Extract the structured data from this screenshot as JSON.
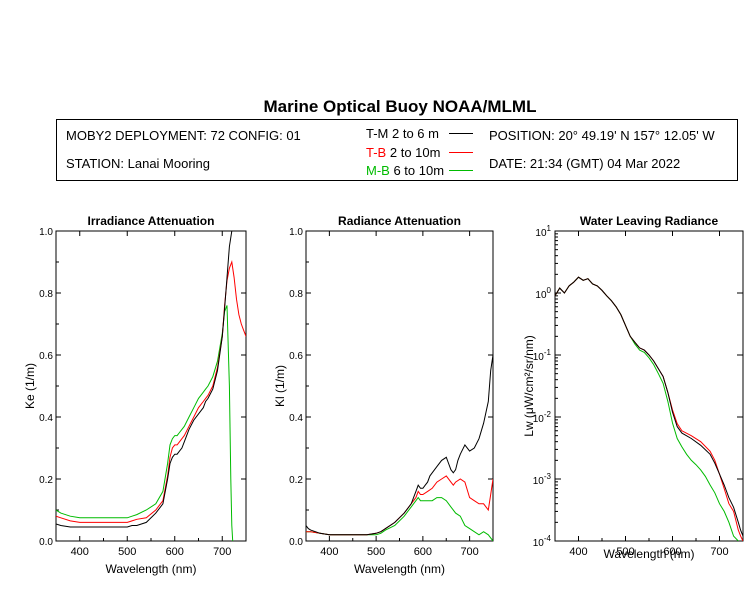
{
  "title": "Marine Optical Buoy NOAA/MLML",
  "info": {
    "deployment": "MOBY2 DEPLOYMENT: 72 CONFIG: 01",
    "station": "STATION: Lanai Mooring",
    "position": "POSITION: 20° 49.19' N   157° 12.05' W",
    "date": "DATE: 21:34 (GMT) 04 Mar 2022"
  },
  "legend": [
    {
      "code": "T-M",
      "range": "2 to 6  m",
      "color": "#000000"
    },
    {
      "code": "T-B",
      "range": "2 to 10m",
      "color": "#ff0000"
    },
    {
      "code": "M-B",
      "range": "6 to 10m",
      "color": "#00bb00"
    }
  ],
  "chart_data": [
    {
      "type": "line",
      "title": "Irradiance Attenuation",
      "xlabel": "Wavelength (nm)",
      "ylabel": "Ke  (1/m)",
      "xlim": [
        350,
        750
      ],
      "ylim": [
        0,
        1.0
      ],
      "x_ticks": [
        400,
        500,
        600,
        700
      ],
      "y_ticks": [
        "0.0",
        "0.2",
        "0.4",
        "0.6",
        "0.8",
        "1.0"
      ],
      "series": [
        {
          "name": "T-M",
          "color": "#000000",
          "x": [
            350,
            360,
            380,
            400,
            420,
            440,
            460,
            480,
            500,
            510,
            520,
            540,
            560,
            575,
            585,
            590,
            595,
            600,
            605,
            610,
            615,
            620,
            630,
            640,
            650,
            655,
            660,
            665,
            670,
            680,
            690,
            700,
            705,
            710,
            715,
            720
          ],
          "y": [
            0.055,
            0.05,
            0.045,
            0.045,
            0.045,
            0.045,
            0.045,
            0.045,
            0.045,
            0.05,
            0.05,
            0.06,
            0.09,
            0.12,
            0.2,
            0.25,
            0.27,
            0.28,
            0.28,
            0.29,
            0.3,
            0.32,
            0.36,
            0.39,
            0.41,
            0.42,
            0.43,
            0.45,
            0.46,
            0.49,
            0.55,
            0.66,
            0.75,
            0.85,
            0.95,
            1.0
          ]
        },
        {
          "name": "T-B",
          "color": "#ff0000",
          "x": [
            350,
            360,
            380,
            400,
            420,
            440,
            460,
            480,
            500,
            510,
            520,
            540,
            560,
            575,
            585,
            590,
            595,
            600,
            605,
            610,
            615,
            620,
            630,
            640,
            650,
            655,
            660,
            665,
            670,
            680,
            690,
            700,
            705,
            710,
            715,
            720,
            725,
            730,
            735,
            740,
            745,
            750
          ],
          "y": [
            0.08,
            0.075,
            0.065,
            0.06,
            0.06,
            0.06,
            0.06,
            0.06,
            0.06,
            0.065,
            0.07,
            0.075,
            0.1,
            0.13,
            0.21,
            0.27,
            0.3,
            0.31,
            0.31,
            0.32,
            0.33,
            0.34,
            0.37,
            0.4,
            0.43,
            0.44,
            0.45,
            0.46,
            0.47,
            0.5,
            0.56,
            0.66,
            0.76,
            0.84,
            0.88,
            0.9,
            0.85,
            0.78,
            0.73,
            0.7,
            0.68,
            0.66
          ]
        },
        {
          "name": "M-B",
          "color": "#00bb00",
          "x": [
            350,
            360,
            380,
            400,
            420,
            440,
            460,
            480,
            500,
            510,
            520,
            540,
            560,
            575,
            585,
            590,
            595,
            600,
            605,
            610,
            615,
            620,
            630,
            640,
            650,
            655,
            660,
            665,
            670,
            680,
            690,
            700,
            705,
            710,
            715,
            718,
            720,
            722
          ],
          "y": [
            0.1,
            0.09,
            0.08,
            0.075,
            0.075,
            0.075,
            0.075,
            0.075,
            0.075,
            0.08,
            0.085,
            0.1,
            0.12,
            0.16,
            0.25,
            0.31,
            0.33,
            0.34,
            0.34,
            0.35,
            0.36,
            0.37,
            0.4,
            0.43,
            0.46,
            0.47,
            0.48,
            0.49,
            0.5,
            0.53,
            0.58,
            0.67,
            0.74,
            0.76,
            0.5,
            0.2,
            0.05,
            0.0
          ]
        }
      ]
    },
    {
      "type": "line",
      "title": "Radiance Attenuation",
      "xlabel": "Wavelength (nm)",
      "ylabel": "Kl  (1/m)",
      "xlim": [
        350,
        750
      ],
      "ylim": [
        0,
        1.0
      ],
      "x_ticks": [
        400,
        500,
        600,
        700
      ],
      "y_ticks": [
        "0.0",
        "0.2",
        "0.4",
        "0.6",
        "0.8",
        "1.0"
      ],
      "series": [
        {
          "name": "T-M",
          "color": "#000000",
          "x": [
            350,
            355,
            360,
            370,
            380,
            400,
            420,
            440,
            460,
            480,
            500,
            510,
            520,
            540,
            560,
            575,
            585,
            590,
            595,
            600,
            605,
            610,
            615,
            620,
            630,
            640,
            650,
            655,
            660,
            665,
            670,
            675,
            680,
            690,
            700,
            710,
            720,
            730,
            740,
            745,
            750
          ],
          "y": [
            0.05,
            0.04,
            0.035,
            0.03,
            0.025,
            0.02,
            0.02,
            0.02,
            0.02,
            0.02,
            0.025,
            0.03,
            0.04,
            0.06,
            0.09,
            0.12,
            0.16,
            0.18,
            0.17,
            0.17,
            0.18,
            0.19,
            0.21,
            0.22,
            0.24,
            0.26,
            0.27,
            0.25,
            0.23,
            0.22,
            0.23,
            0.26,
            0.28,
            0.31,
            0.29,
            0.3,
            0.33,
            0.38,
            0.45,
            0.55,
            0.6
          ]
        },
        {
          "name": "T-B",
          "color": "#ff0000",
          "x": [
            350,
            360,
            380,
            400,
            420,
            440,
            460,
            480,
            500,
            510,
            520,
            540,
            560,
            575,
            585,
            590,
            595,
            600,
            610,
            620,
            630,
            640,
            650,
            660,
            665,
            670,
            680,
            690,
            700,
            710,
            720,
            730,
            740,
            745,
            750
          ],
          "y": [
            0.03,
            0.03,
            0.025,
            0.02,
            0.02,
            0.02,
            0.02,
            0.02,
            0.025,
            0.03,
            0.04,
            0.06,
            0.09,
            0.12,
            0.14,
            0.16,
            0.15,
            0.15,
            0.16,
            0.17,
            0.19,
            0.2,
            0.21,
            0.19,
            0.18,
            0.19,
            0.2,
            0.19,
            0.14,
            0.13,
            0.12,
            0.12,
            0.1,
            0.15,
            0.2
          ]
        },
        {
          "name": "M-B",
          "color": "#00bb00",
          "x": [
            350,
            360,
            380,
            400,
            420,
            440,
            460,
            480,
            500,
            510,
            520,
            540,
            560,
            575,
            585,
            590,
            595,
            600,
            610,
            620,
            630,
            640,
            650,
            660,
            670,
            680,
            690,
            700,
            710,
            720,
            730,
            740,
            745,
            750
          ],
          "y": [
            0.03,
            0.03,
            0.025,
            0.02,
            0.02,
            0.02,
            0.02,
            0.02,
            0.02,
            0.025,
            0.035,
            0.05,
            0.08,
            0.11,
            0.13,
            0.14,
            0.13,
            0.13,
            0.13,
            0.13,
            0.14,
            0.14,
            0.13,
            0.11,
            0.09,
            0.08,
            0.05,
            0.04,
            0.03,
            0.02,
            0.03,
            0.02,
            0.01,
            0.0
          ]
        }
      ]
    },
    {
      "type": "line",
      "title": "Water Leaving Radiance",
      "xlabel": "Wavelength (nm)",
      "ylabel": "Lw  (μW/cm²/sr/nm)",
      "yscale": "log",
      "xlim": [
        350,
        750
      ],
      "ylim": [
        0.0001,
        10
      ],
      "x_ticks": [
        400,
        500,
        600,
        700
      ],
      "y_ticks": [
        {
          "base": "10",
          "exp": "1"
        },
        {
          "base": "10",
          "exp": "0"
        },
        {
          "base": "10",
          "exp": "-1"
        },
        {
          "base": "10",
          "exp": "-2"
        },
        {
          "base": "10",
          "exp": "-3"
        },
        {
          "base": "10",
          "exp": "-4"
        }
      ],
      "series": [
        {
          "name": "T-M",
          "color": "#000000",
          "x": [
            350,
            360,
            370,
            380,
            390,
            400,
            410,
            420,
            430,
            440,
            450,
            460,
            470,
            480,
            490,
            500,
            510,
            520,
            530,
            540,
            550,
            560,
            570,
            580,
            590,
            600,
            610,
            620,
            640,
            660,
            680,
            690,
            700,
            710,
            720,
            730,
            740,
            745,
            750
          ],
          "y": [
            0.9,
            1.2,
            1.0,
            1.3,
            1.5,
            1.8,
            1.6,
            1.7,
            1.4,
            1.3,
            1.1,
            0.9,
            0.75,
            0.6,
            0.45,
            0.3,
            0.2,
            0.16,
            0.13,
            0.12,
            0.1,
            0.08,
            0.06,
            0.045,
            0.025,
            0.012,
            0.007,
            0.0055,
            0.0045,
            0.0035,
            0.0025,
            0.0018,
            0.0012,
            0.0008,
            0.0005,
            0.00035,
            0.0002,
            0.00015,
            0.00012
          ]
        },
        {
          "name": "T-B",
          "color": "#ff0000",
          "x": [
            350,
            360,
            370,
            380,
            390,
            400,
            410,
            420,
            430,
            440,
            450,
            460,
            470,
            480,
            490,
            500,
            510,
            520,
            530,
            540,
            550,
            560,
            570,
            580,
            590,
            600,
            610,
            620,
            640,
            660,
            680,
            690,
            700,
            710,
            720,
            730,
            740,
            745,
            750
          ],
          "y": [
            0.9,
            1.2,
            1.0,
            1.3,
            1.5,
            1.8,
            1.6,
            1.7,
            1.4,
            1.3,
            1.1,
            0.9,
            0.75,
            0.6,
            0.45,
            0.3,
            0.2,
            0.16,
            0.13,
            0.12,
            0.1,
            0.08,
            0.06,
            0.045,
            0.025,
            0.013,
            0.0078,
            0.006,
            0.005,
            0.004,
            0.0028,
            0.002,
            0.0012,
            0.0007,
            0.0004,
            0.0003,
            0.00015,
            0.00012,
            0.0001
          ]
        },
        {
          "name": "M-B",
          "color": "#00bb00",
          "x": [
            350,
            360,
            370,
            380,
            390,
            400,
            410,
            420,
            430,
            440,
            450,
            460,
            470,
            480,
            490,
            500,
            510,
            520,
            530,
            540,
            550,
            560,
            570,
            580,
            590,
            600,
            610,
            620,
            630,
            640,
            650,
            660,
            670,
            680,
            690,
            700,
            710,
            720,
            730,
            740
          ],
          "y": [
            0.9,
            1.2,
            1.0,
            1.3,
            1.5,
            1.8,
            1.6,
            1.7,
            1.4,
            1.3,
            1.1,
            0.9,
            0.75,
            0.6,
            0.45,
            0.3,
            0.2,
            0.15,
            0.12,
            0.11,
            0.09,
            0.07,
            0.05,
            0.035,
            0.018,
            0.008,
            0.0045,
            0.0033,
            0.0025,
            0.002,
            0.0017,
            0.0014,
            0.0011,
            0.0008,
            0.0006,
            0.0004,
            0.0003,
            0.0002,
            0.00012,
            0.0001
          ]
        }
      ]
    }
  ]
}
